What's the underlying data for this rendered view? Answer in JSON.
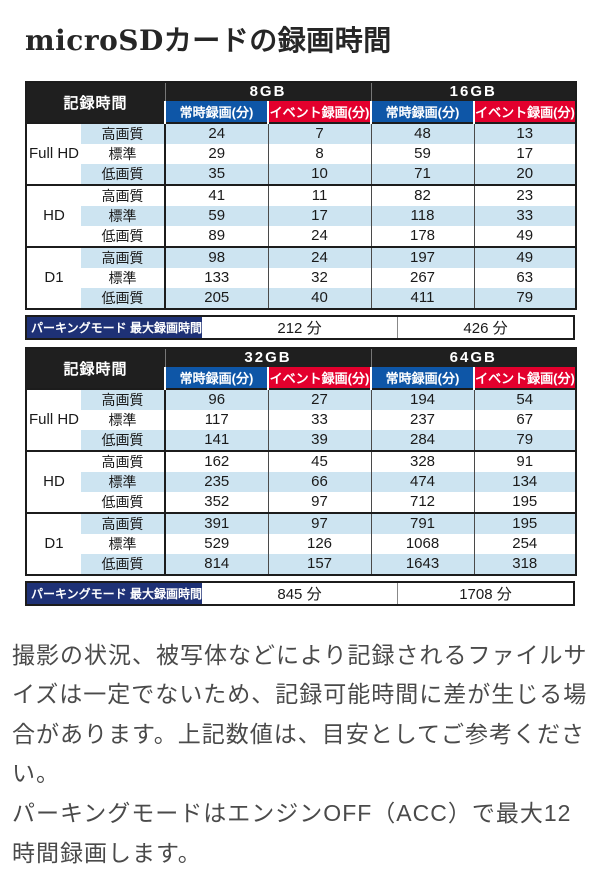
{
  "page_title": "microSDカードの録画時間",
  "colors": {
    "header_bg": "#1f1f1f",
    "constant_rec_header": "#0e56a7",
    "event_rec_header": "#e3002d",
    "row_stripe": "#cde4f1",
    "parking_label_bg": "#1e3176"
  },
  "tables": [
    {
      "corner_label": "記録時間",
      "capacities": [
        "8GB",
        "16GB"
      ],
      "sub_headers": [
        "常時録画(分)",
        "イベント録画(分)",
        "常時録画(分)",
        "イベント録画(分)"
      ],
      "sections": [
        {
          "resolution": "Full HD",
          "rows": [
            {
              "quality": "高画質",
              "values": [
                "24",
                "7",
                "48",
                "13"
              ]
            },
            {
              "quality": "標準",
              "values": [
                "29",
                "8",
                "59",
                "17"
              ]
            },
            {
              "quality": "低画質",
              "values": [
                "35",
                "10",
                "71",
                "20"
              ]
            }
          ]
        },
        {
          "resolution": "HD",
          "rows": [
            {
              "quality": "高画質",
              "values": [
                "41",
                "11",
                "82",
                "23"
              ]
            },
            {
              "quality": "標準",
              "values": [
                "59",
                "17",
                "118",
                "33"
              ]
            },
            {
              "quality": "低画質",
              "values": [
                "89",
                "24",
                "178",
                "49"
              ]
            }
          ]
        },
        {
          "resolution": "D1",
          "rows": [
            {
              "quality": "高画質",
              "values": [
                "98",
                "24",
                "197",
                "49"
              ]
            },
            {
              "quality": "標準",
              "values": [
                "133",
                "32",
                "267",
                "63"
              ]
            },
            {
              "quality": "低画質",
              "values": [
                "205",
                "40",
                "411",
                "79"
              ]
            }
          ]
        }
      ],
      "parking": {
        "label": "パーキングモード 最大録画時間",
        "values": [
          "212 分",
          "426 分"
        ]
      }
    },
    {
      "corner_label": "記録時間",
      "capacities": [
        "32GB",
        "64GB"
      ],
      "sub_headers": [
        "常時録画(分)",
        "イベント録画(分)",
        "常時録画(分)",
        "イベント録画(分)"
      ],
      "sections": [
        {
          "resolution": "Full HD",
          "rows": [
            {
              "quality": "高画質",
              "values": [
                "96",
                "27",
                "194",
                "54"
              ]
            },
            {
              "quality": "標準",
              "values": [
                "117",
                "33",
                "237",
                "67"
              ]
            },
            {
              "quality": "低画質",
              "values": [
                "141",
                "39",
                "284",
                "79"
              ]
            }
          ]
        },
        {
          "resolution": "HD",
          "rows": [
            {
              "quality": "高画質",
              "values": [
                "162",
                "45",
                "328",
                "91"
              ]
            },
            {
              "quality": "標準",
              "values": [
                "235",
                "66",
                "474",
                "134"
              ]
            },
            {
              "quality": "低画質",
              "values": [
                "352",
                "97",
                "712",
                "195"
              ]
            }
          ]
        },
        {
          "resolution": "D1",
          "rows": [
            {
              "quality": "高画質",
              "values": [
                "391",
                "97",
                "791",
                "195"
              ]
            },
            {
              "quality": "標準",
              "values": [
                "529",
                "126",
                "1068",
                "254"
              ]
            },
            {
              "quality": "低画質",
              "values": [
                "814",
                "157",
                "1643",
                "318"
              ]
            }
          ]
        }
      ],
      "parking": {
        "label": "パーキングモード 最大録画時間",
        "values": [
          "845 分",
          "1708 分"
        ]
      }
    }
  ],
  "notes": [
    "撮影の状況、被写体などにより記録されるファイルサイズは一定でないため、記録可能時間に差が生じる場合があります。上記数値は、目安としてご参考ください。",
    "パーキングモードはエンジンOFF（ACC）で最大12時間録画します。"
  ]
}
